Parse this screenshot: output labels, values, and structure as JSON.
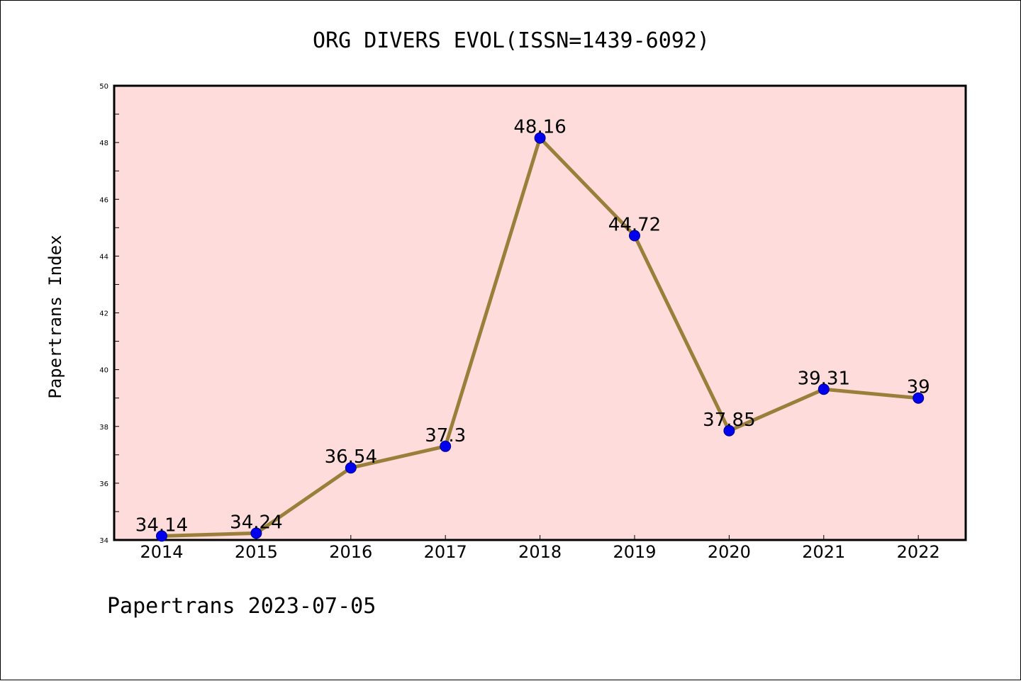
{
  "chart_data": {
    "type": "line",
    "title": "ORG DIVERS EVOL(ISSN=1439-6092)",
    "xlabel": "",
    "ylabel": "Papertrans Index",
    "categories": [
      "2014",
      "2015",
      "2016",
      "2017",
      "2018",
      "2019",
      "2020",
      "2021",
      "2022"
    ],
    "series": [
      {
        "values": [
          34.14,
          34.24,
          36.54,
          37.3,
          48.16,
          44.72,
          37.85,
          39.31,
          39
        ],
        "data_labels": [
          "34.14",
          "34.24",
          "36.54",
          "37.3",
          "48.16",
          "44.72",
          "37.85",
          "39.31",
          "39"
        ]
      }
    ],
    "ylim": [
      34,
      50
    ],
    "yticks": [
      "34",
      "36",
      "38",
      "40",
      "42",
      "44",
      "46",
      "48",
      "50"
    ],
    "grid": false,
    "legend": "none",
    "footer": "Papertrans 2023-07-05",
    "colors": {
      "plot_background": "#fddcdb",
      "line": "#9a7f3a",
      "marker": "#0000ee",
      "axis": "#000000"
    }
  }
}
